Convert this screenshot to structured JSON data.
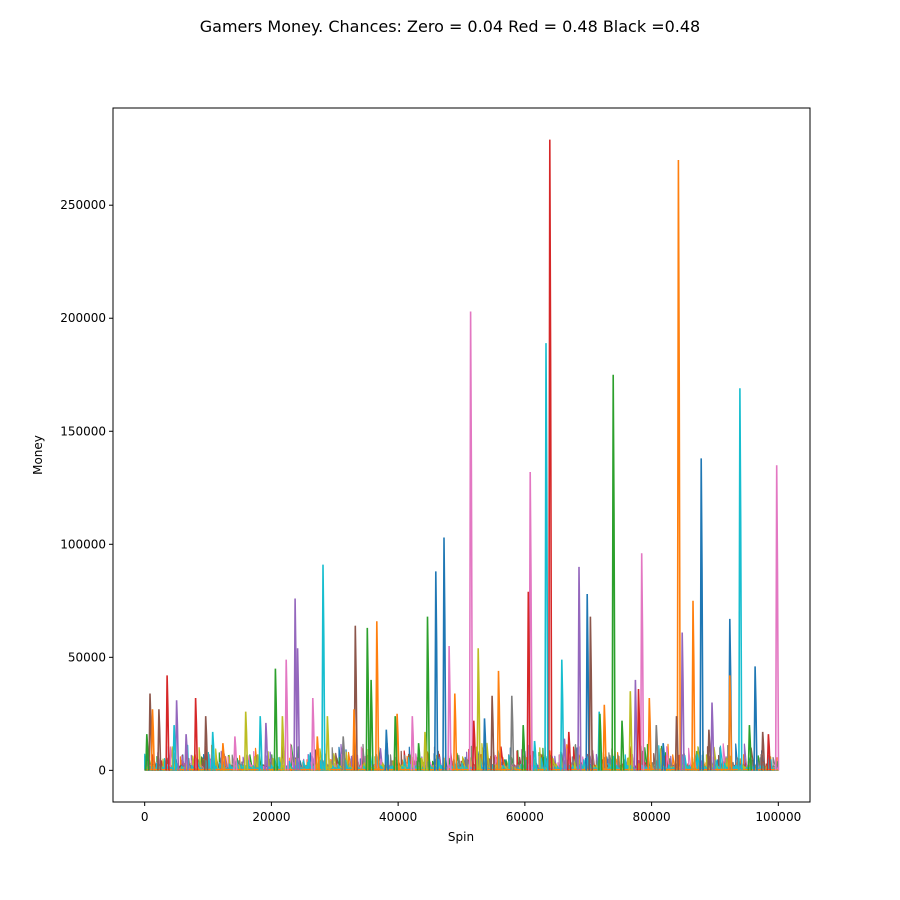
{
  "chart_data": {
    "type": "line",
    "title": "Gamers Money. Chances: Zero = 0.04  Red = 0.48  Black =0.48",
    "xlabel": "Spin",
    "ylabel": "Money",
    "xlim": [
      -5000,
      105000
    ],
    "ylim": [
      -14000,
      293000
    ],
    "xticks": [
      0,
      20000,
      40000,
      60000,
      80000,
      100000
    ],
    "xtick_labels": [
      "0",
      "20000",
      "40000",
      "60000",
      "80000",
      "100000"
    ],
    "yticks": [
      0,
      50000,
      100000,
      150000,
      200000,
      250000
    ],
    "ytick_labels": [
      "0",
      "50000",
      "100000",
      "150000",
      "200000",
      "250000"
    ],
    "grid": false,
    "legend": "none",
    "palette": [
      "#1f77b4",
      "#ff7f0e",
      "#2ca02c",
      "#d62728",
      "#9467bd",
      "#8c564b",
      "#e377c2",
      "#7f7f7f",
      "#bcbd22",
      "#17becf"
    ],
    "spikes": [
      {
        "color": "#d62728",
        "x": 64000,
        "y": 279000
      },
      {
        "color": "#ff7f0e",
        "x": 84300,
        "y": 270000
      },
      {
        "color": "#e377c2",
        "x": 51500,
        "y": 203000
      },
      {
        "color": "#17becf",
        "x": 63400,
        "y": 189000
      },
      {
        "color": "#2ca02c",
        "x": 74000,
        "y": 175000
      },
      {
        "color": "#17becf",
        "x": 94000,
        "y": 169000
      },
      {
        "color": "#1f77b4",
        "x": 87900,
        "y": 138000
      },
      {
        "color": "#e377c2",
        "x": 99800,
        "y": 135000
      },
      {
        "color": "#e377c2",
        "x": 60900,
        "y": 132000
      },
      {
        "color": "#1f77b4",
        "x": 47300,
        "y": 103000
      },
      {
        "color": "#e377c2",
        "x": 78500,
        "y": 96000
      },
      {
        "color": "#17becf",
        "x": 28200,
        "y": 91000
      },
      {
        "color": "#9467bd",
        "x": 68600,
        "y": 90000
      },
      {
        "color": "#1f77b4",
        "x": 46000,
        "y": 88000
      },
      {
        "color": "#d62728",
        "x": 60600,
        "y": 79000
      },
      {
        "color": "#1f77b4",
        "x": 69900,
        "y": 78000
      },
      {
        "color": "#9467bd",
        "x": 23800,
        "y": 76000
      },
      {
        "color": "#ff7f0e",
        "x": 86600,
        "y": 75000
      },
      {
        "color": "#2ca02c",
        "x": 44700,
        "y": 68000
      },
      {
        "color": "#8c564b",
        "x": 70400,
        "y": 68000
      },
      {
        "color": "#1f77b4",
        "x": 92400,
        "y": 67000
      },
      {
        "color": "#ff7f0e",
        "x": 36700,
        "y": 66000
      },
      {
        "color": "#8c564b",
        "x": 33300,
        "y": 64000
      },
      {
        "color": "#2ca02c",
        "x": 35200,
        "y": 63000
      },
      {
        "color": "#9467bd",
        "x": 84900,
        "y": 61000
      },
      {
        "color": "#e377c2",
        "x": 48100,
        "y": 55000
      },
      {
        "color": "#bcbd22",
        "x": 52700,
        "y": 54000
      },
      {
        "color": "#9467bd",
        "x": 24200,
        "y": 54000
      },
      {
        "color": "#e377c2",
        "x": 22400,
        "y": 49000
      },
      {
        "color": "#17becf",
        "x": 65900,
        "y": 49000
      },
      {
        "color": "#1f77b4",
        "x": 96400,
        "y": 46000
      },
      {
        "color": "#2ca02c",
        "x": 20700,
        "y": 45000
      },
      {
        "color": "#ff7f0e",
        "x": 55900,
        "y": 44000
      },
      {
        "color": "#ff7f0e",
        "x": 92400,
        "y": 42000
      },
      {
        "color": "#d62728",
        "x": 3600,
        "y": 42000
      },
      {
        "color": "#9467bd",
        "x": 77500,
        "y": 40000
      },
      {
        "color": "#2ca02c",
        "x": 35800,
        "y": 40000
      },
      {
        "color": "#e377c2",
        "x": 26600,
        "y": 32000
      },
      {
        "color": "#d62728",
        "x": 78000,
        "y": 36000
      },
      {
        "color": "#bcbd22",
        "x": 76700,
        "y": 35000
      },
      {
        "color": "#8c564b",
        "x": 900,
        "y": 34000
      },
      {
        "color": "#ff7f0e",
        "x": 49000,
        "y": 34000
      },
      {
        "color": "#d62728",
        "x": 8100,
        "y": 32000
      },
      {
        "color": "#9467bd",
        "x": 5100,
        "y": 31000
      },
      {
        "color": "#8c564b",
        "x": 54900,
        "y": 33000
      },
      {
        "color": "#7f7f7f",
        "x": 58000,
        "y": 33000
      },
      {
        "color": "#ff7f0e",
        "x": 79700,
        "y": 32000
      },
      {
        "color": "#9467bd",
        "x": 89600,
        "y": 30000
      },
      {
        "color": "#ff7f0e",
        "x": 72600,
        "y": 29000
      },
      {
        "color": "#8c564b",
        "x": 2300,
        "y": 27000
      },
      {
        "color": "#ff7f0e",
        "x": 1300,
        "y": 27000
      },
      {
        "color": "#ff7f0e",
        "x": 33100,
        "y": 27000
      },
      {
        "color": "#17becf",
        "x": 71800,
        "y": 26000
      },
      {
        "color": "#bcbd22",
        "x": 16000,
        "y": 26000
      },
      {
        "color": "#2ca02c",
        "x": 71900,
        "y": 25000
      },
      {
        "color": "#ff7f0e",
        "x": 39900,
        "y": 25000
      },
      {
        "color": "#17becf",
        "x": 18300,
        "y": 24000
      },
      {
        "color": "#8c564b",
        "x": 9700,
        "y": 24000
      },
      {
        "color": "#2ca02c",
        "x": 39600,
        "y": 24000
      },
      {
        "color": "#e377c2",
        "x": 42300,
        "y": 24000
      },
      {
        "color": "#bcbd22",
        "x": 28900,
        "y": 24000
      },
      {
        "color": "#8c564b",
        "x": 84000,
        "y": 24000
      },
      {
        "color": "#bcbd22",
        "x": 21800,
        "y": 24000
      },
      {
        "color": "#2ca02c",
        "x": 75400,
        "y": 22000
      },
      {
        "color": "#d62728",
        "x": 52000,
        "y": 22000
      },
      {
        "color": "#1f77b4",
        "x": 53700,
        "y": 23000
      },
      {
        "color": "#2ca02c",
        "x": 95500,
        "y": 20000
      },
      {
        "color": "#7f7f7f",
        "x": 80800,
        "y": 20000
      },
      {
        "color": "#17becf",
        "x": 4700,
        "y": 20000
      },
      {
        "color": "#2ca02c",
        "x": 59800,
        "y": 20000
      },
      {
        "color": "#9467bd",
        "x": 19200,
        "y": 21000
      },
      {
        "color": "#8c564b",
        "x": 97600,
        "y": 17000
      },
      {
        "color": "#d62728",
        "x": 98500,
        "y": 16000
      },
      {
        "color": "#17becf",
        "x": 10800,
        "y": 17000
      },
      {
        "color": "#9467bd",
        "x": 6600,
        "y": 16000
      },
      {
        "color": "#8c564b",
        "x": 89100,
        "y": 18000
      },
      {
        "color": "#d62728",
        "x": 67000,
        "y": 17000
      },
      {
        "color": "#ff7f0e",
        "x": 27300,
        "y": 15000
      },
      {
        "color": "#7f7f7f",
        "x": 31400,
        "y": 15000
      },
      {
        "color": "#1f77b4",
        "x": 38200,
        "y": 18000
      },
      {
        "color": "#bcbd22",
        "x": 44300,
        "y": 17000
      },
      {
        "color": "#e377c2",
        "x": 14300,
        "y": 15000
      },
      {
        "color": "#2ca02c",
        "x": 400,
        "y": 16000
      },
      {
        "color": "#17becf",
        "x": 61600,
        "y": 13000
      },
      {
        "color": "#9467bd",
        "x": 66300,
        "y": 14000
      },
      {
        "color": "#1f77b4",
        "x": 81900,
        "y": 12000
      },
      {
        "color": "#ff7f0e",
        "x": 12400,
        "y": 12000
      },
      {
        "color": "#2ca02c",
        "x": 43300,
        "y": 12000
      }
    ]
  }
}
